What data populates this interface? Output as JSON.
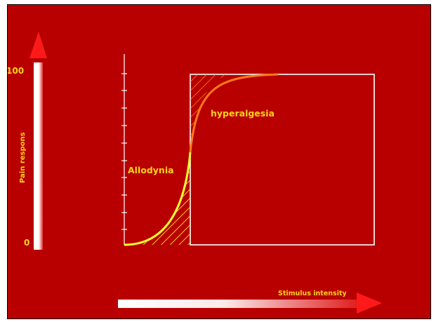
{
  "labels": {
    "y_axis": "Pain respons",
    "y_max": "100",
    "y_min": "0",
    "x_axis": "Stimulus intensity",
    "allodynia": "Allodynia",
    "hyperalgesia": "hyperalgesia"
  },
  "colors": {
    "background": "#b80000",
    "label_text": "#ffd21a",
    "allodynia_curve": "#ffff33",
    "hyperalgesia_curve": "#ff7a1a",
    "arrow": "#ff1a1a",
    "box": "#ffffff"
  },
  "icons": {
    "up_arrow": "arrow-up-icon",
    "right_arrow": "arrow-right-icon"
  }
}
